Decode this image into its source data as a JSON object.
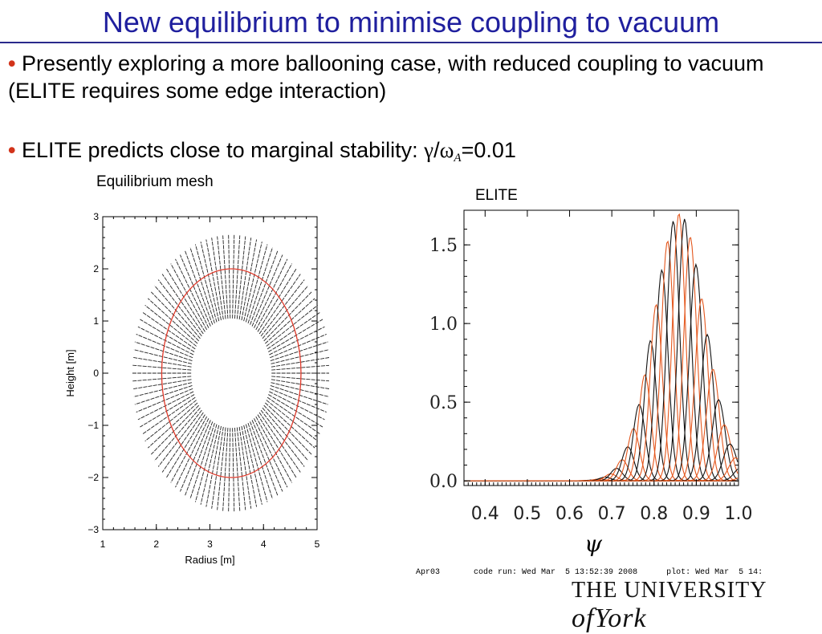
{
  "slide": {
    "title": "New equilibrium to minimise coupling to vacuum",
    "bullets": [
      {
        "text": "Presently exploring a more ballooning case, with reduced coupling to vacuum (ELITE requires some edge interaction)"
      },
      {
        "text_prefix": "ELITE predicts close to marginal stability: ",
        "gamma": "γ",
        "slash": "/",
        "omega": "ω",
        "omega_sub": "A",
        "value": "=0.01"
      }
    ],
    "bullet_symbol": "•",
    "colors": {
      "title": "#1f1f9e",
      "bullet": "#d2331a",
      "rule": "#2a2a8c"
    }
  },
  "chart_data": [
    {
      "type": "scatter",
      "caption": "Equilibrium mesh",
      "xlabel": "Radius [m]",
      "ylabel": "Height [m]",
      "xlim": [
        1,
        5
      ],
      "ylim": [
        -3,
        3
      ],
      "xticks": [
        "1",
        "2",
        "3",
        "4",
        "5"
      ],
      "yticks": [
        "−3",
        "−2",
        "−1",
        "0",
        "1",
        "2",
        "3"
      ],
      "mesh": {
        "center": [
          3.4,
          0
        ],
        "inner_boundary": {
          "a": 0.75,
          "b": 1.05
        },
        "outer_boundary": {
          "a": 1.85,
          "b": 2.65
        },
        "radial_lines": 110,
        "line_color": "#222222"
      },
      "separatrix": {
        "center": [
          3.4,
          0
        ],
        "a": 1.3,
        "b": 2.0,
        "color": "#e0392a"
      }
    },
    {
      "type": "line",
      "caption": "ELITE",
      "xlabel": "ψ",
      "xlim": [
        0.35,
        1.0
      ],
      "ylim": [
        -0.03,
        1.72
      ],
      "xticks": [
        "0.4",
        "0.5",
        "0.6",
        "0.7",
        "0.8",
        "0.9",
        "1.0"
      ],
      "yticks": [
        "0.0",
        "0.5",
        "1.0",
        "1.5"
      ],
      "yticks_values": [
        0.0,
        0.5,
        1.0,
        1.5
      ],
      "xticks_values": [
        0.4,
        0.5,
        0.6,
        0.7,
        0.8,
        0.9,
        1.0
      ],
      "series_colors": [
        "#111111",
        "#e4571d"
      ],
      "harmonics": {
        "count": 36,
        "peak_psi_start": 0.55,
        "peak_psi_end": 1.02,
        "envelope_peak_psi": 0.86,
        "envelope_peak_amplitude": 1.7
      }
    }
  ],
  "footer": {
    "run_id": "Apr03",
    "code_run": "code run: Wed Mar  5 13:52:39 2008",
    "plot": "plot: Wed Mar  5 14:"
  },
  "logo": {
    "prefix": "THE UNIVERSITY",
    "of": "of",
    "name": "York"
  }
}
